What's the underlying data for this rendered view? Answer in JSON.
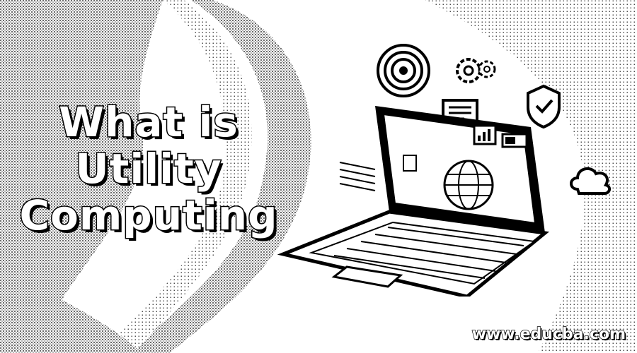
{
  "title": {
    "line1": "What is",
    "line2": "Utility",
    "line3": "Computing"
  },
  "watermark": "www.educba.com",
  "icons": [
    "target-icon",
    "gears-icon",
    "shield-check-icon",
    "cloud-icon",
    "laptop-icon",
    "document-icon",
    "battery-icon",
    "chart-icon",
    "globe-icon"
  ]
}
